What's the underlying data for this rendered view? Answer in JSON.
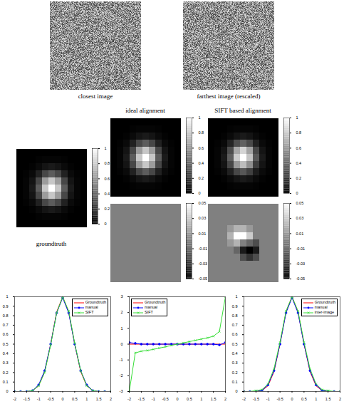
{
  "chart_data": [
    {
      "type": "image",
      "title": "closest image"
    },
    {
      "type": "image",
      "title": "farthest image (rescaled)"
    },
    {
      "type": "heatmap",
      "title": "groundtruth",
      "tick_labels": false,
      "cells": [
        [
          0,
          0,
          0,
          0,
          0,
          0,
          0,
          0,
          0,
          0,
          0
        ],
        [
          0,
          0,
          0,
          0.01,
          0.02,
          0.02,
          0.02,
          0.01,
          0,
          0,
          0
        ],
        [
          0,
          0,
          0.01,
          0.04,
          0.08,
          0.1,
          0.08,
          0.04,
          0.01,
          0,
          0
        ],
        [
          0,
          0.01,
          0.04,
          0.13,
          0.28,
          0.36,
          0.28,
          0.13,
          0.04,
          0.01,
          0
        ],
        [
          0,
          0.02,
          0.08,
          0.28,
          0.61,
          0.78,
          0.61,
          0.28,
          0.08,
          0.02,
          0
        ],
        [
          0,
          0.02,
          0.1,
          0.36,
          0.78,
          1,
          0.78,
          0.36,
          0.1,
          0.02,
          0
        ],
        [
          0,
          0.02,
          0.08,
          0.28,
          0.61,
          0.78,
          0.61,
          0.28,
          0.08,
          0.02,
          0
        ],
        [
          0,
          0.01,
          0.04,
          0.13,
          0.28,
          0.36,
          0.28,
          0.13,
          0.04,
          0.01,
          0
        ],
        [
          0,
          0,
          0.01,
          0.04,
          0.08,
          0.1,
          0.08,
          0.04,
          0.01,
          0,
          0
        ],
        [
          0,
          0,
          0,
          0.01,
          0.02,
          0.02,
          0.02,
          0.01,
          0,
          0,
          0
        ],
        [
          0,
          0,
          0,
          0,
          0,
          0,
          0,
          0,
          0,
          0,
          0
        ]
      ],
      "colorbar_lim": [
        0,
        1
      ],
      "colorbar_ticks": [
        0,
        0.2,
        0.4,
        0.6,
        0.8,
        1
      ]
    },
    {
      "type": "heatmap",
      "title": "ideal alignment",
      "tick_labels": false,
      "cells": [
        [
          0,
          0,
          0,
          0,
          0,
          0,
          0,
          0,
          0,
          0,
          0
        ],
        [
          0,
          0,
          0,
          0.01,
          0.02,
          0.02,
          0.02,
          0.01,
          0,
          0,
          0
        ],
        [
          0,
          0,
          0.01,
          0.04,
          0.08,
          0.1,
          0.08,
          0.04,
          0.01,
          0,
          0
        ],
        [
          0,
          0.01,
          0.04,
          0.13,
          0.28,
          0.36,
          0.28,
          0.13,
          0.04,
          0.01,
          0
        ],
        [
          0,
          0.02,
          0.08,
          0.28,
          0.61,
          0.78,
          0.61,
          0.28,
          0.08,
          0.02,
          0
        ],
        [
          0,
          0.02,
          0.1,
          0.36,
          0.78,
          1,
          0.78,
          0.36,
          0.1,
          0.02,
          0
        ],
        [
          0,
          0.02,
          0.08,
          0.28,
          0.61,
          0.78,
          0.61,
          0.28,
          0.08,
          0.02,
          0
        ],
        [
          0,
          0.01,
          0.04,
          0.13,
          0.28,
          0.36,
          0.28,
          0.13,
          0.04,
          0.01,
          0
        ],
        [
          0,
          0,
          0.01,
          0.04,
          0.08,
          0.1,
          0.08,
          0.04,
          0.01,
          0,
          0
        ],
        [
          0,
          0,
          0,
          0.01,
          0.02,
          0.02,
          0.02,
          0.01,
          0,
          0,
          0
        ],
        [
          0,
          0,
          0,
          0,
          0,
          0,
          0,
          0,
          0,
          0,
          0
        ]
      ],
      "colorbar_lim": [
        0,
        1
      ],
      "colorbar_ticks": [
        0,
        0.2,
        0.4,
        0.6,
        0.8,
        1
      ]
    },
    {
      "type": "heatmap",
      "tick_labels": false,
      "cells": [
        [
          0,
          0,
          0,
          0,
          0,
          0,
          0,
          0,
          0,
          0,
          0
        ],
        [
          0,
          0,
          0,
          0,
          0,
          0,
          0,
          0,
          0,
          0,
          0
        ],
        [
          0,
          0,
          0,
          0,
          0,
          0,
          0,
          0,
          0,
          0,
          0
        ],
        [
          0,
          0,
          0,
          0,
          0,
          0,
          0,
          0,
          0,
          0,
          0
        ],
        [
          0,
          0,
          0,
          0,
          0,
          0,
          0,
          0,
          0,
          0,
          0
        ],
        [
          0,
          0,
          0,
          0,
          0,
          0,
          0,
          0,
          0,
          0,
          0
        ],
        [
          0,
          0,
          0,
          0,
          0,
          0,
          0,
          0,
          0,
          0,
          0
        ],
        [
          0,
          0,
          0,
          0,
          0,
          0,
          0,
          0,
          0,
          0,
          0
        ],
        [
          0,
          0,
          0,
          0,
          0,
          0,
          0,
          0,
          0,
          0,
          0
        ],
        [
          0,
          0,
          0,
          0,
          0,
          0,
          0,
          0,
          0,
          0,
          0
        ],
        [
          0,
          0,
          0,
          0,
          0,
          0,
          0,
          0,
          0,
          0,
          0
        ]
      ],
      "colorbar_lim": [
        -0.05,
        0.05
      ],
      "colorbar_ticks": [
        -0.05,
        -0.03,
        -0.01,
        0.01,
        0.03,
        0.05
      ]
    },
    {
      "type": "heatmap",
      "title": "SIFT based alignment",
      "tick_labels": false,
      "cells": [
        [
          0,
          0,
          0,
          0,
          0,
          0,
          0,
          0,
          0,
          0,
          0
        ],
        [
          0,
          0,
          0,
          0.01,
          0.02,
          0.02,
          0.02,
          0.01,
          0,
          0,
          0
        ],
        [
          0,
          0,
          0.01,
          0.04,
          0.08,
          0.1,
          0.08,
          0.04,
          0.01,
          0,
          0
        ],
        [
          0,
          0.01,
          0.04,
          0.14,
          0.3,
          0.38,
          0.29,
          0.13,
          0.04,
          0.01,
          0
        ],
        [
          0,
          0.02,
          0.08,
          0.3,
          0.66,
          0.83,
          0.64,
          0.28,
          0.08,
          0.02,
          0
        ],
        [
          0,
          0.02,
          0.1,
          0.37,
          0.8,
          1,
          0.77,
          0.34,
          0.1,
          0.02,
          0
        ],
        [
          0,
          0.02,
          0.08,
          0.28,
          0.6,
          0.74,
          0.56,
          0.24,
          0.08,
          0.02,
          0
        ],
        [
          0,
          0.01,
          0.04,
          0.13,
          0.28,
          0.34,
          0.25,
          0.11,
          0.04,
          0.01,
          0
        ],
        [
          0,
          0,
          0.01,
          0.04,
          0.08,
          0.1,
          0.08,
          0.04,
          0.01,
          0,
          0
        ],
        [
          0,
          0,
          0,
          0.01,
          0.02,
          0.02,
          0.02,
          0.01,
          0,
          0,
          0
        ],
        [
          0,
          0,
          0,
          0,
          0,
          0,
          0,
          0,
          0,
          0,
          0
        ]
      ],
      "colorbar_lim": [
        0,
        1
      ],
      "colorbar_ticks": [
        0,
        0.2,
        0.4,
        0.6,
        0.8,
        1
      ]
    },
    {
      "type": "heatmap",
      "tick_labels": false,
      "cells": [
        [
          0,
          0,
          0,
          0,
          0,
          0,
          0,
          0,
          0,
          0,
          0
        ],
        [
          0,
          0,
          0,
          0,
          0,
          0,
          0,
          0,
          0,
          0,
          0
        ],
        [
          0,
          0,
          0,
          0,
          0,
          0,
          0,
          0,
          0,
          0,
          0
        ],
        [
          0,
          0,
          0,
          0.01,
          0.02,
          0.02,
          0.01,
          0,
          0,
          0,
          0
        ],
        [
          0,
          0,
          0,
          0.02,
          0.05,
          0.05,
          0.03,
          0,
          0,
          0,
          0
        ],
        [
          0,
          0,
          0,
          0.01,
          0.02,
          0,
          -0.01,
          -0.02,
          0,
          0,
          0
        ],
        [
          0,
          0,
          0,
          0,
          -0.01,
          -0.04,
          -0.05,
          -0.04,
          0,
          0,
          0
        ],
        [
          0,
          0,
          0,
          0,
          0,
          -0.02,
          -0.03,
          -0.02,
          0,
          0,
          0
        ],
        [
          0,
          0,
          0,
          0,
          0,
          0,
          0,
          0,
          0,
          0,
          0
        ],
        [
          0,
          0,
          0,
          0,
          0,
          0,
          0,
          0,
          0,
          0,
          0
        ],
        [
          0,
          0,
          0,
          0,
          0,
          0,
          0,
          0,
          0,
          0,
          0
        ]
      ],
      "colorbar_lim": [
        -0.05,
        0.05
      ],
      "colorbar_ticks": [
        -0.05,
        -0.03,
        -0.01,
        0.01,
        0.03,
        0.05
      ]
    },
    {
      "type": "line",
      "legend": "top-right",
      "x": [
        -2,
        -1.75,
        -1.5,
        -1.25,
        -1,
        -0.75,
        -0.5,
        -0.25,
        0,
        0.25,
        0.5,
        0.75,
        1,
        1.25,
        1.5,
        1.75,
        2
      ],
      "series": [
        {
          "name": "Groundtruth",
          "color": "#ff0000",
          "values": [
            0,
            0,
            0,
            0.01,
            0.06,
            0.21,
            0.5,
            0.84,
            1,
            0.84,
            0.5,
            0.21,
            0.06,
            0.01,
            0,
            0,
            0
          ]
        },
        {
          "name": "manual",
          "color": "#0000ff",
          "marker": "circle",
          "values": [
            0,
            0,
            0,
            0.01,
            0.07,
            0.22,
            0.5,
            0.83,
            0.99,
            0.83,
            0.5,
            0.22,
            0.07,
            0.01,
            0,
            0,
            0
          ]
        },
        {
          "name": "SIFT",
          "color": "#33dd33",
          "marker": "x",
          "values": [
            0,
            0,
            0,
            0.01,
            0.06,
            0.2,
            0.49,
            0.83,
            1,
            0.85,
            0.51,
            0.22,
            0.06,
            0.01,
            0,
            0,
            0
          ]
        }
      ],
      "xlim": [
        -2,
        2
      ],
      "xticks": [
        -2,
        -1.5,
        -1,
        -0.5,
        0,
        0.5,
        1,
        1.5,
        2
      ],
      "ylim": [
        0,
        1
      ],
      "yticks": [
        0,
        0.1,
        0.2,
        0.3,
        0.4,
        0.5,
        0.6,
        0.7,
        0.8,
        0.9,
        1
      ]
    },
    {
      "type": "line",
      "legend": "top-left",
      "x": [
        -2,
        -1.75,
        -1.5,
        -1.25,
        -1,
        -0.75,
        -0.5,
        -0.25,
        0,
        0.25,
        0.5,
        0.75,
        1,
        1.25,
        1.5,
        1.75,
        2
      ],
      "series": [
        {
          "name": "Groundtruth",
          "color": "#ff0000",
          "values": [
            0,
            0,
            0,
            0,
            0,
            0,
            0,
            0,
            0,
            0,
            0,
            0,
            0,
            0,
            0,
            0,
            0
          ]
        },
        {
          "name": "manual",
          "color": "#0000ff",
          "marker": "circle",
          "values": [
            0.1,
            0.05,
            0,
            0,
            0,
            0,
            0,
            0,
            0,
            0,
            0,
            0,
            0,
            0,
            0,
            -0.05,
            0.1
          ]
        },
        {
          "name": "SIFT",
          "color": "#33dd33",
          "marker": "x",
          "values": [
            -3,
            -0.55,
            -0.45,
            -0.4,
            -0.33,
            -0.25,
            -0.17,
            -0.08,
            0,
            0.08,
            0.16,
            0.24,
            0.32,
            0.4,
            0.5,
            0.8,
            3
          ]
        }
      ],
      "xlim": [
        -2,
        2
      ],
      "xticks": [
        -2,
        -1.5,
        -1,
        -0.5,
        0,
        0.5,
        1,
        1.5,
        2
      ],
      "ylim": [
        -3,
        3
      ],
      "yticks": [
        -3,
        -2,
        -1,
        0,
        1,
        2,
        3
      ]
    },
    {
      "type": "line",
      "legend": "top-right",
      "x": [
        -2,
        -1.75,
        -1.5,
        -1.25,
        -1,
        -0.75,
        -0.5,
        -0.25,
        0,
        0.25,
        0.5,
        0.75,
        1,
        1.25,
        1.5,
        1.75,
        2
      ],
      "series": [
        {
          "name": "Groundtruth",
          "color": "#ff0000",
          "values": [
            0,
            0,
            0,
            0.01,
            0.06,
            0.21,
            0.5,
            0.84,
            1,
            0.84,
            0.5,
            0.21,
            0.06,
            0.01,
            0,
            0,
            0
          ]
        },
        {
          "name": "manual",
          "color": "#0000ff",
          "marker": "circle",
          "values": [
            0,
            0,
            0,
            0.01,
            0.07,
            0.22,
            0.5,
            0.83,
            0.99,
            0.83,
            0.5,
            0.22,
            0.07,
            0.01,
            0,
            0,
            0
          ]
        },
        {
          "name": "inter-image",
          "color": "#33dd33",
          "marker": "x",
          "values": [
            0,
            0,
            0.01,
            0.02,
            0.08,
            0.24,
            0.52,
            0.85,
            1,
            0.85,
            0.52,
            0.24,
            0.08,
            0.02,
            0.01,
            0,
            0
          ]
        }
      ],
      "xlim": [
        -2,
        2
      ],
      "xticks": [
        -2,
        -1.5,
        -1,
        -0.5,
        0,
        0.5,
        1,
        1.5,
        2
      ],
      "ylim": [
        0,
        1
      ],
      "yticks": [
        0,
        0.1,
        0.2,
        0.3,
        0.4,
        0.5,
        0.6,
        0.7,
        0.8,
        0.9,
        1
      ]
    }
  ]
}
